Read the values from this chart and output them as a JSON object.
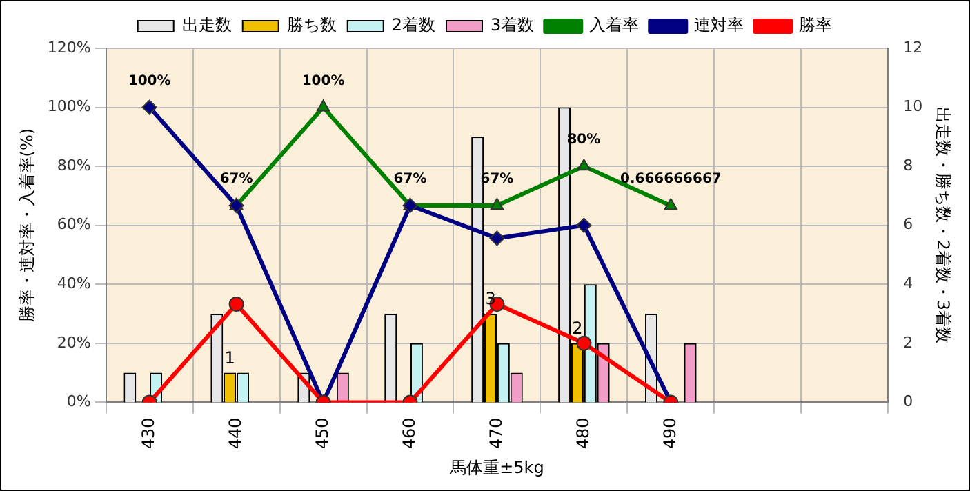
{
  "chart_data": {
    "type": "bar",
    "xlabel": "馬体重±5kg",
    "ylabel": "勝率・連対率・入着率(%)",
    "y2label": "出走数・勝ち数・2着数・3着数",
    "categories": [
      "430",
      "440",
      "450",
      "460",
      "470",
      "480",
      "490",
      null,
      null
    ],
    "series": [
      {
        "name": "出走数",
        "axis": "y2",
        "color": "#e6e6e6",
        "values": [
          1,
          3,
          1,
          3,
          9,
          10,
          3,
          null,
          null
        ]
      },
      {
        "name": "勝ち数",
        "axis": "y2",
        "color": "#f0c000",
        "values": [
          0,
          1,
          0,
          0,
          3,
          2,
          0,
          null,
          null
        ],
        "value_labels": [
          null,
          "1",
          null,
          null,
          "3",
          "2",
          null,
          null,
          null
        ]
      },
      {
        "name": "2着数",
        "axis": "y2",
        "color": "#c4f2f2",
        "values": [
          1,
          1,
          0,
          2,
          2,
          4,
          0,
          null,
          null
        ]
      },
      {
        "name": "3着数",
        "axis": "y2",
        "color": "#f29cc8",
        "values": [
          0,
          0,
          1,
          0,
          1,
          2,
          2,
          null,
          null
        ]
      },
      {
        "name": "入着率",
        "type": "line",
        "color": "#008000",
        "marker": "triangle",
        "values": [
          null,
          0.667,
          1,
          0.667,
          0.667,
          0.8,
          0.666666667,
          null,
          null
        ],
        "value_labels": [
          null,
          "67%",
          "100%",
          "67%",
          "67%",
          "80%",
          "0.666666667",
          null,
          null
        ]
      },
      {
        "name": "連対率",
        "type": "line",
        "color": "#000080",
        "marker": "diamond",
        "values": [
          1,
          0.667,
          0,
          0.667,
          0.556,
          0.6,
          0,
          null,
          null
        ]
      },
      {
        "name": "勝率",
        "type": "line",
        "color": "#ff0000",
        "marker": "circle",
        "values": [
          0,
          0.333,
          0,
          0,
          0.333,
          0.2,
          0,
          null,
          null
        ]
      }
    ],
    "annotations": [
      {
        "text": "100%",
        "x": "430",
        "y": 1
      }
    ],
    "ylim": [
      0,
      1.2
    ],
    "yticks": [
      {
        "value": 0,
        "label": "0%"
      },
      {
        "value": 0.2,
        "label": "20%"
      },
      {
        "value": 0.4,
        "label": "40%"
      },
      {
        "value": 0.6,
        "label": "60%"
      },
      {
        "value": 0.8,
        "label": "80%"
      },
      {
        "value": 1,
        "label": "100%"
      },
      {
        "value": 1.2,
        "label": "120%"
      }
    ],
    "y2lim": [
      0,
      12
    ],
    "y2ticks": [
      0,
      2,
      4,
      6,
      8,
      10,
      12
    ],
    "grid": true,
    "legend": "top"
  }
}
